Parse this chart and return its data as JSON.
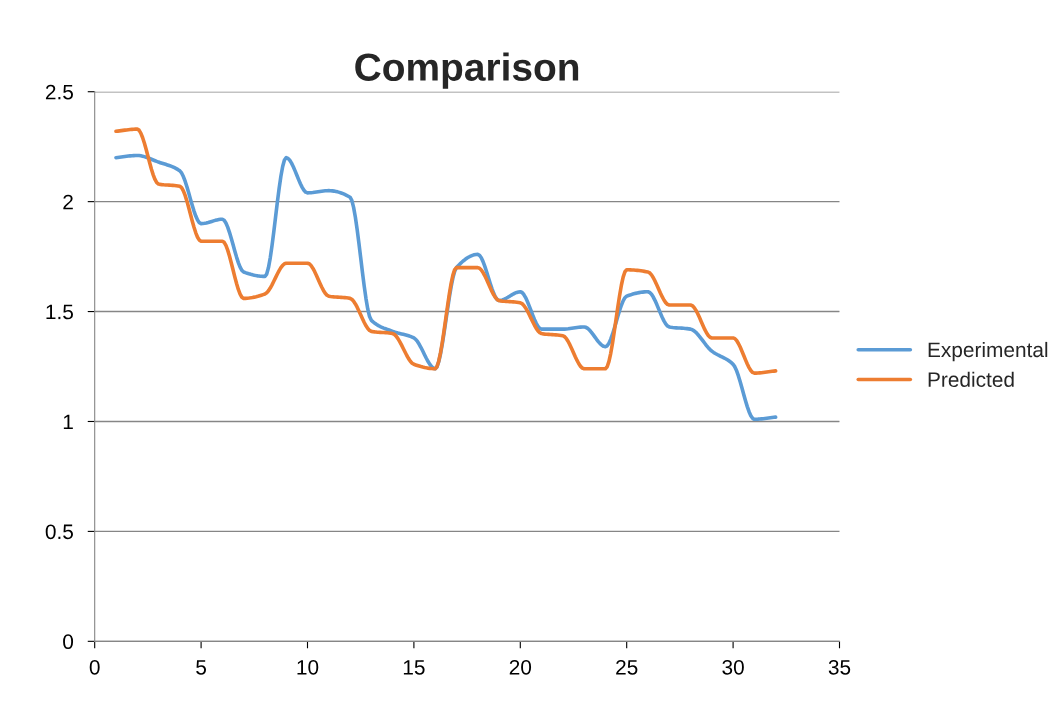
{
  "chart_data": {
    "type": "line",
    "title": "Comparison",
    "x": [
      1,
      2,
      3,
      4,
      5,
      6,
      7,
      8,
      9,
      10,
      11,
      12,
      13,
      14,
      15,
      16,
      17,
      18,
      19,
      20,
      21,
      22,
      23,
      24,
      25,
      26,
      27,
      28,
      29,
      30,
      31,
      32
    ],
    "series": [
      {
        "name": "Experimental",
        "color": "#5b9bd5",
        "values": [
          2.2,
          2.21,
          2.18,
          2.14,
          1.9,
          1.92,
          1.68,
          1.66,
          2.2,
          2.04,
          2.05,
          2.02,
          1.46,
          1.41,
          1.38,
          1.24,
          1.7,
          1.76,
          1.55,
          1.59,
          1.42,
          1.42,
          1.43,
          1.34,
          1.57,
          1.59,
          1.43,
          1.42,
          1.32,
          1.26,
          1.01,
          1.02
        ]
      },
      {
        "name": "Predicted",
        "color": "#ed7d31",
        "values": [
          2.32,
          2.33,
          2.08,
          2.07,
          1.82,
          1.82,
          1.56,
          1.58,
          1.72,
          1.72,
          1.57,
          1.56,
          1.41,
          1.4,
          1.26,
          1.24,
          1.7,
          1.7,
          1.55,
          1.54,
          1.4,
          1.39,
          1.24,
          1.24,
          1.69,
          1.68,
          1.53,
          1.53,
          1.38,
          1.38,
          1.22,
          1.23
        ]
      }
    ],
    "xlim": [
      0,
      35
    ],
    "xticks": [
      0,
      5,
      10,
      15,
      20,
      25,
      30,
      35
    ],
    "ylim": [
      0,
      2.5
    ],
    "yticks": [
      0,
      0.5,
      1,
      1.5,
      2,
      2.5
    ],
    "grid": "y",
    "legend": "right",
    "marker": "none",
    "line_style": "solid"
  }
}
